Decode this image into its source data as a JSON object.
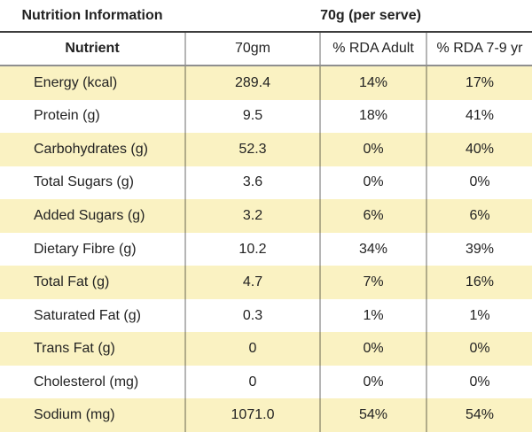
{
  "header": {
    "title": "Nutrition Information",
    "serving": "70g (per serve)"
  },
  "table": {
    "columns": {
      "nutrient": "Nutrient",
      "amount": "70gm",
      "rda_adult": "% RDA Adult",
      "rda_7_9yr": "% RDA 7-9 yr"
    },
    "rows": [
      {
        "nutrient": "Energy (kcal)",
        "amount": "289.4",
        "rda_adult": "14%",
        "rda_7_9yr": "17%"
      },
      {
        "nutrient": "Protein (g)",
        "amount": "9.5",
        "rda_adult": "18%",
        "rda_7_9yr": "41%"
      },
      {
        "nutrient": "Carbohydrates (g)",
        "amount": "52.3",
        "rda_adult": "0%",
        "rda_7_9yr": "40%"
      },
      {
        "nutrient": "Total Sugars (g)",
        "amount": "3.6",
        "rda_adult": "0%",
        "rda_7_9yr": "0%"
      },
      {
        "nutrient": "Added Sugars (g)",
        "amount": "3.2",
        "rda_adult": "6%",
        "rda_7_9yr": "6%"
      },
      {
        "nutrient": "Dietary Fibre (g)",
        "amount": "10.2",
        "rda_adult": "34%",
        "rda_7_9yr": "39%"
      },
      {
        "nutrient": "Total Fat (g)",
        "amount": "4.7",
        "rda_adult": "7%",
        "rda_7_9yr": "16%"
      },
      {
        "nutrient": "Saturated Fat (g)",
        "amount": "0.3",
        "rda_adult": "1%",
        "rda_7_9yr": "1%"
      },
      {
        "nutrient": "Trans Fat (g)",
        "amount": "0",
        "rda_adult": "0%",
        "rda_7_9yr": "0%"
      },
      {
        "nutrient": "Cholesterol (mg)",
        "amount": "0",
        "rda_adult": "0%",
        "rda_7_9yr": "0%"
      },
      {
        "nutrient": "Sodium (mg)",
        "amount": "1071.0",
        "rda_adult": "54%",
        "rda_7_9yr": "54%"
      }
    ]
  },
  "colors": {
    "row_highlight": "#faf2c2",
    "row_plain": "#ffffff",
    "title_rule": "#3d3d3d",
    "header_rule": "#8f8f8f",
    "column_divider": "#b5b5b5",
    "text": "#222222"
  },
  "chart_data": {
    "type": "table",
    "title": "Nutrition Information",
    "subtitle": "70g (per serve)",
    "columns": [
      "Nutrient",
      "70gm",
      "% RDA Adult",
      "% RDA 7-9 yr"
    ],
    "rows": [
      [
        "Energy (kcal)",
        "289.4",
        "14%",
        "17%"
      ],
      [
        "Protein (g)",
        "9.5",
        "18%",
        "41%"
      ],
      [
        "Carbohydrates (g)",
        "52.3",
        "0%",
        "40%"
      ],
      [
        "Total Sugars (g)",
        "3.6",
        "0%",
        "0%"
      ],
      [
        "Added Sugars (g)",
        "3.2",
        "6%",
        "6%"
      ],
      [
        "Dietary Fibre (g)",
        "10.2",
        "34%",
        "39%"
      ],
      [
        "Total Fat (g)",
        "4.7",
        "7%",
        "16%"
      ],
      [
        "Saturated Fat (g)",
        "0.3",
        "1%",
        "1%"
      ],
      [
        "Trans Fat (g)",
        "0",
        "0%",
        "0%"
      ],
      [
        "Cholesterol (mg)",
        "0",
        "0%",
        "0%"
      ],
      [
        "Sodium (mg)",
        "1071.0",
        "54%",
        "54%"
      ]
    ],
    "layout_hints": {
      "striped_rows": "odd rows pale yellow",
      "grid": "vertical dividers only below title band"
    }
  }
}
